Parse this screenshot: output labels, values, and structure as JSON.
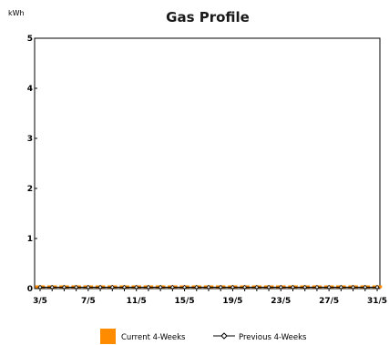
{
  "chart_data": {
    "type": "bar",
    "title": "Gas Profile",
    "ylabel": "kWh",
    "xlabel": "",
    "ylim": [
      0,
      5
    ],
    "yticks": [
      0,
      1,
      2,
      3,
      4,
      5
    ],
    "x_tick_labels": [
      "3/5",
      "7/5",
      "11/5",
      "15/5",
      "19/5",
      "23/5",
      "27/5",
      "31/5"
    ],
    "categories": [
      "3/5",
      "4/5",
      "5/5",
      "6/5",
      "7/5",
      "8/5",
      "9/5",
      "10/5",
      "11/5",
      "12/5",
      "13/5",
      "14/5",
      "15/5",
      "16/5",
      "17/5",
      "18/5",
      "19/5",
      "20/5",
      "21/5",
      "22/5",
      "23/5",
      "24/5",
      "25/5",
      "26/5",
      "27/5",
      "28/5",
      "29/5",
      "30/5",
      "31/5"
    ],
    "series": [
      {
        "name": "Current 4-Weeks",
        "type": "bar",
        "color": "#ff8c00",
        "values": [
          0,
          0,
          0,
          0,
          0,
          0,
          0,
          0,
          0,
          0,
          0,
          0,
          0,
          0,
          0,
          0,
          0,
          0,
          0,
          0,
          0,
          0,
          0,
          0,
          0,
          0,
          0,
          0,
          0
        ]
      },
      {
        "name": "Previous 4-Weeks",
        "type": "line",
        "color": "#000000",
        "values": [
          0,
          0,
          0,
          0,
          0,
          0,
          0,
          0,
          0,
          0,
          0,
          0,
          0,
          0,
          0,
          0,
          0,
          0,
          0,
          0,
          0,
          0,
          0,
          0,
          0,
          0,
          0,
          0,
          0
        ]
      }
    ],
    "grid": false,
    "legend_position": "bottom"
  }
}
